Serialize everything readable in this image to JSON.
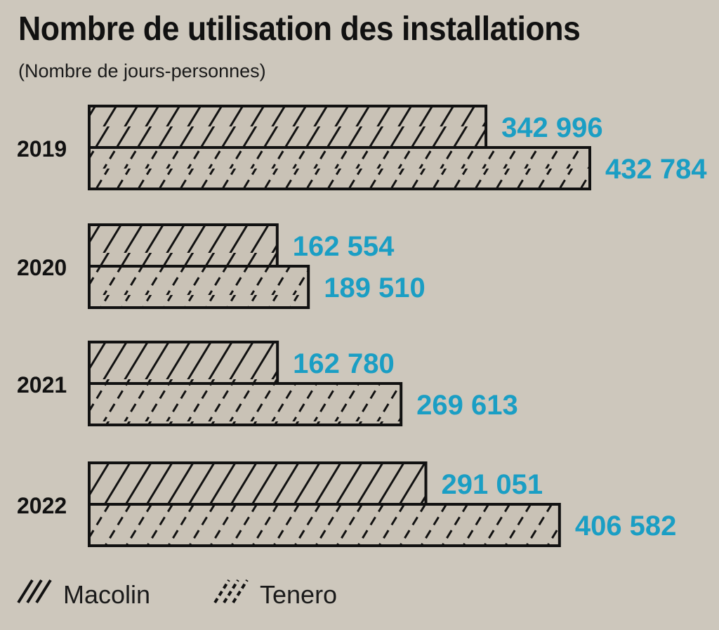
{
  "chart_data": {
    "type": "bar",
    "orientation": "horizontal",
    "title": "Nombre de utilisation des installations",
    "subtitle": "(Nombre de jours-personnes)",
    "categories": [
      "2019",
      "2020",
      "2021",
      "2022"
    ],
    "series": [
      {
        "name": "Macolin",
        "values": [
          342996,
          162554,
          162780,
          291051
        ],
        "labels": [
          "342 996",
          "162 554",
          "162 780",
          "291 051"
        ],
        "pattern": "solid-diagonal-hatch"
      },
      {
        "name": "Tenero",
        "values": [
          432784,
          189510,
          269613,
          406582
        ],
        "labels": [
          "432 784",
          "189 510",
          "269 613",
          "406 582"
        ],
        "pattern": "dashed-diagonal-hatch"
      }
    ],
    "xlim": [
      0,
      432784
    ],
    "grid": false,
    "legend_position": "bottom-left",
    "colors": {
      "background": "#cdc7bc",
      "bar_fill": "#c9c2b6",
      "bar_stroke": "#111111",
      "value_label": "#1a9ec4",
      "text": "#111111"
    }
  }
}
